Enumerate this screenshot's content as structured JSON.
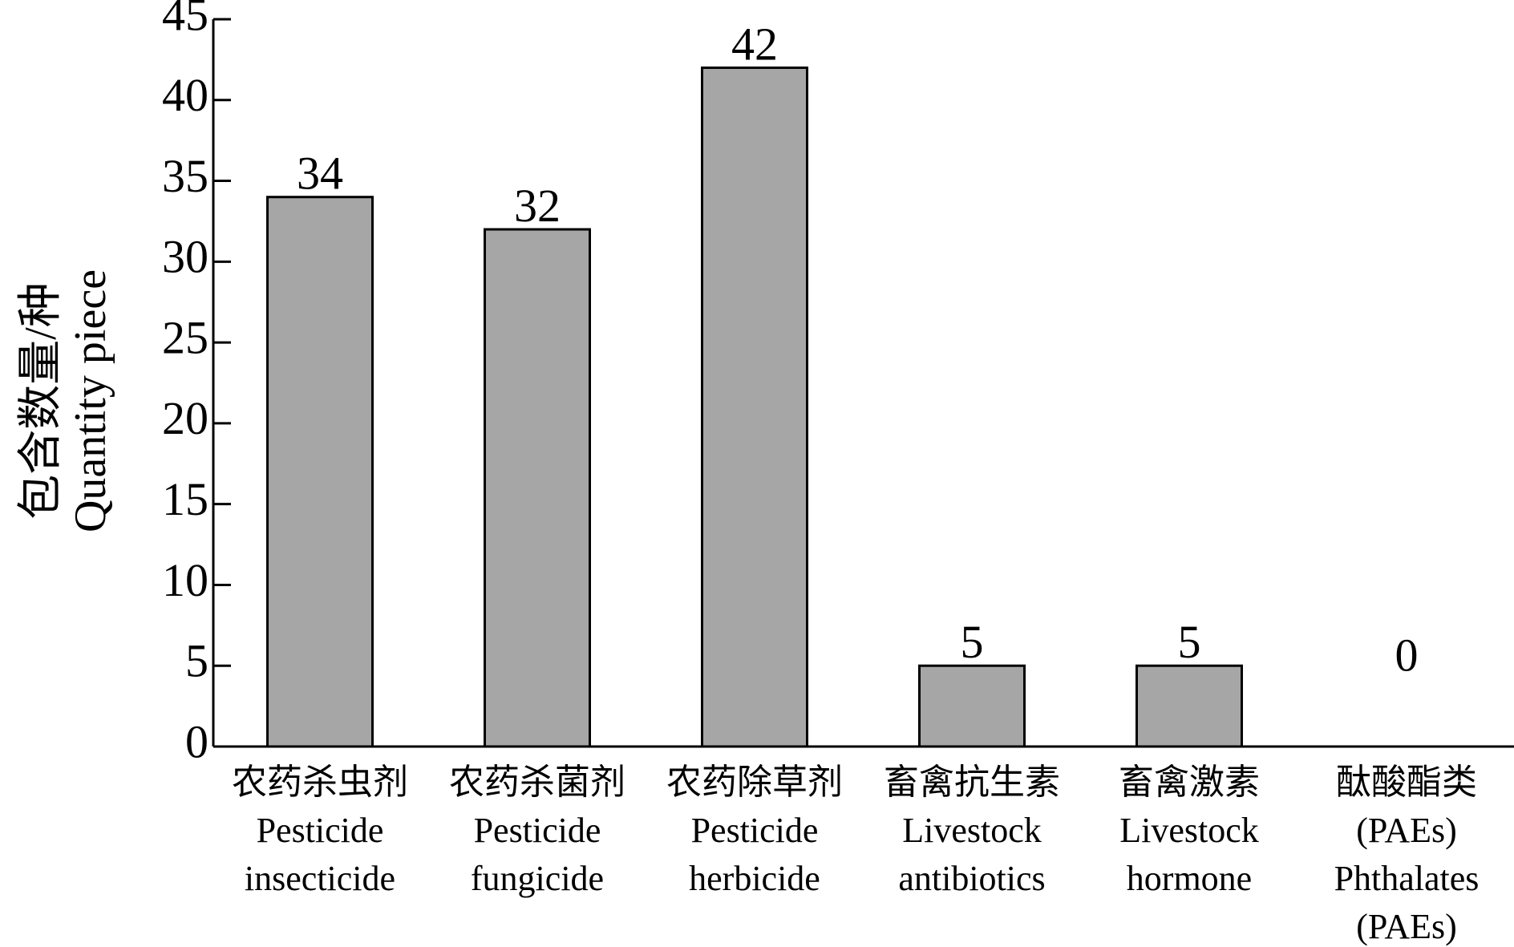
{
  "chart_data": {
    "type": "bar",
    "title": "",
    "ylabel_lines": [
      "包含数量/种",
      "Quantity piece"
    ],
    "ylim": [
      0,
      45
    ],
    "yticks": [
      0,
      5,
      10,
      15,
      20,
      25,
      30,
      35,
      40,
      45
    ],
    "grid": false,
    "legend": "none",
    "categories": [
      [
        "农药杀虫剂",
        "Pesticide",
        "insecticide"
      ],
      [
        "农药杀菌剂",
        "Pesticide",
        "fungicide"
      ],
      [
        "农药除草剂",
        "Pesticide",
        "herbicide"
      ],
      [
        "畜禽抗生素",
        "Livestock",
        "antibiotics"
      ],
      [
        "畜禽激素",
        "Livestock",
        "hormone"
      ],
      [
        "酞酸酯类",
        "(PAEs)",
        "Phthalates",
        "(PAEs)"
      ]
    ],
    "values": [
      34,
      32,
      42,
      5,
      5,
      0
    ],
    "data_labels": [
      "34",
      "32",
      "42",
      "5",
      "5",
      "0"
    ],
    "bar_color": "#a6a6a6",
    "edge_color": "#000000"
  }
}
